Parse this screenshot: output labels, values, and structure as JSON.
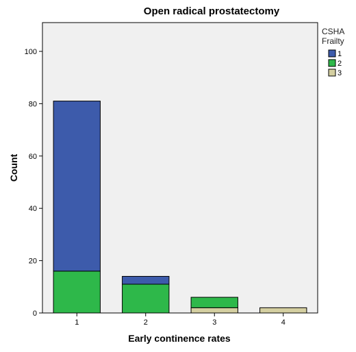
{
  "chart_data": {
    "type": "bar",
    "stacked": true,
    "title": "Open radical prostatectomy",
    "xlabel": "Early continence rates",
    "ylabel": "Count",
    "categories": [
      "1",
      "2",
      "3",
      "4"
    ],
    "ylim": [
      0,
      111
    ],
    "yticks": [
      0,
      20,
      40,
      60,
      80,
      100
    ],
    "grid": false,
    "legend": {
      "title_line1": "CSHA",
      "title_line2": "Frailty",
      "placement": "right"
    },
    "series": [
      {
        "name": "3",
        "color": "#d4cfa1",
        "values": [
          0,
          0,
          2,
          2
        ]
      },
      {
        "name": "2",
        "color": "#2eb84a",
        "values": [
          16,
          11,
          4,
          0
        ]
      },
      {
        "name": "1",
        "color": "#3d5bab",
        "values": [
          65,
          3,
          0,
          0
        ]
      }
    ],
    "plot_background": "#f0f0f0"
  }
}
